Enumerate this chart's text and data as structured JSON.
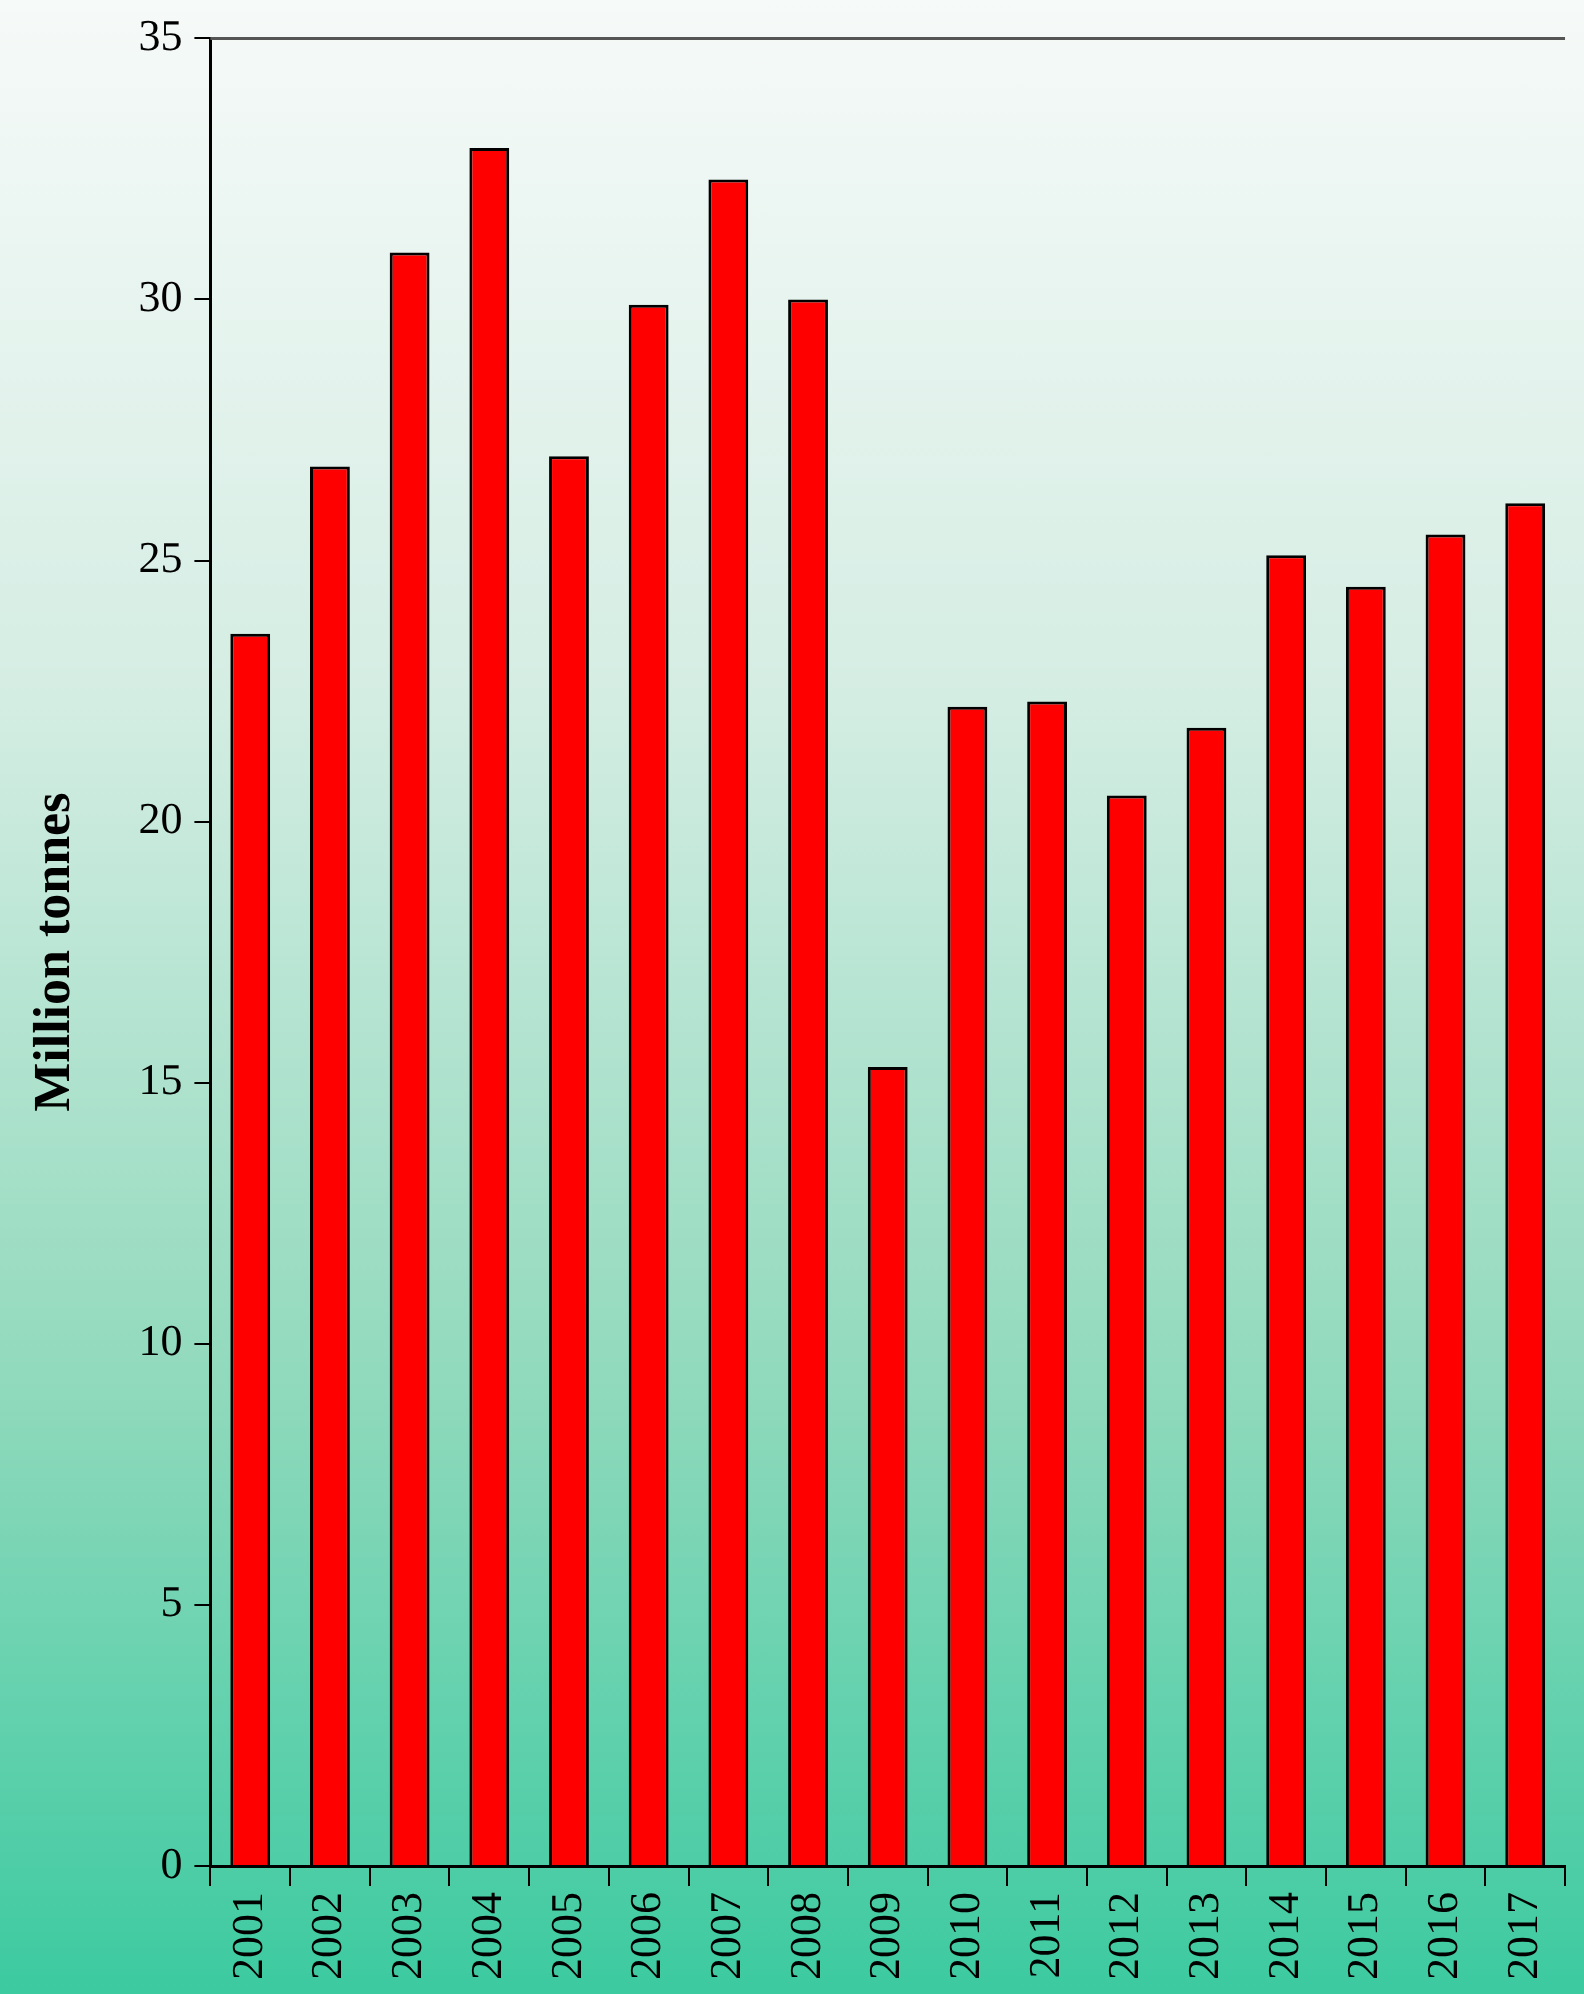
{
  "chart_data": {
    "type": "bar",
    "ylabel": "Million tonnes",
    "categories": [
      "2001",
      "2002",
      "2003",
      "2004",
      "2005",
      "2006",
      "2007",
      "2008",
      "2009",
      "2010",
      "2011",
      "2012",
      "2013",
      "2014",
      "2015",
      "2016",
      "2017"
    ],
    "values": [
      23.6,
      26.8,
      30.9,
      32.9,
      27.0,
      29.9,
      32.3,
      30.0,
      15.3,
      22.2,
      22.3,
      20.5,
      21.8,
      25.1,
      24.5,
      25.5,
      26.1
    ],
    "color": "#ff0000",
    "ylim": [
      0,
      35
    ],
    "yticks": [
      0,
      5,
      10,
      15,
      20,
      25,
      30,
      35
    ],
    "grid": false,
    "legend": false
  }
}
